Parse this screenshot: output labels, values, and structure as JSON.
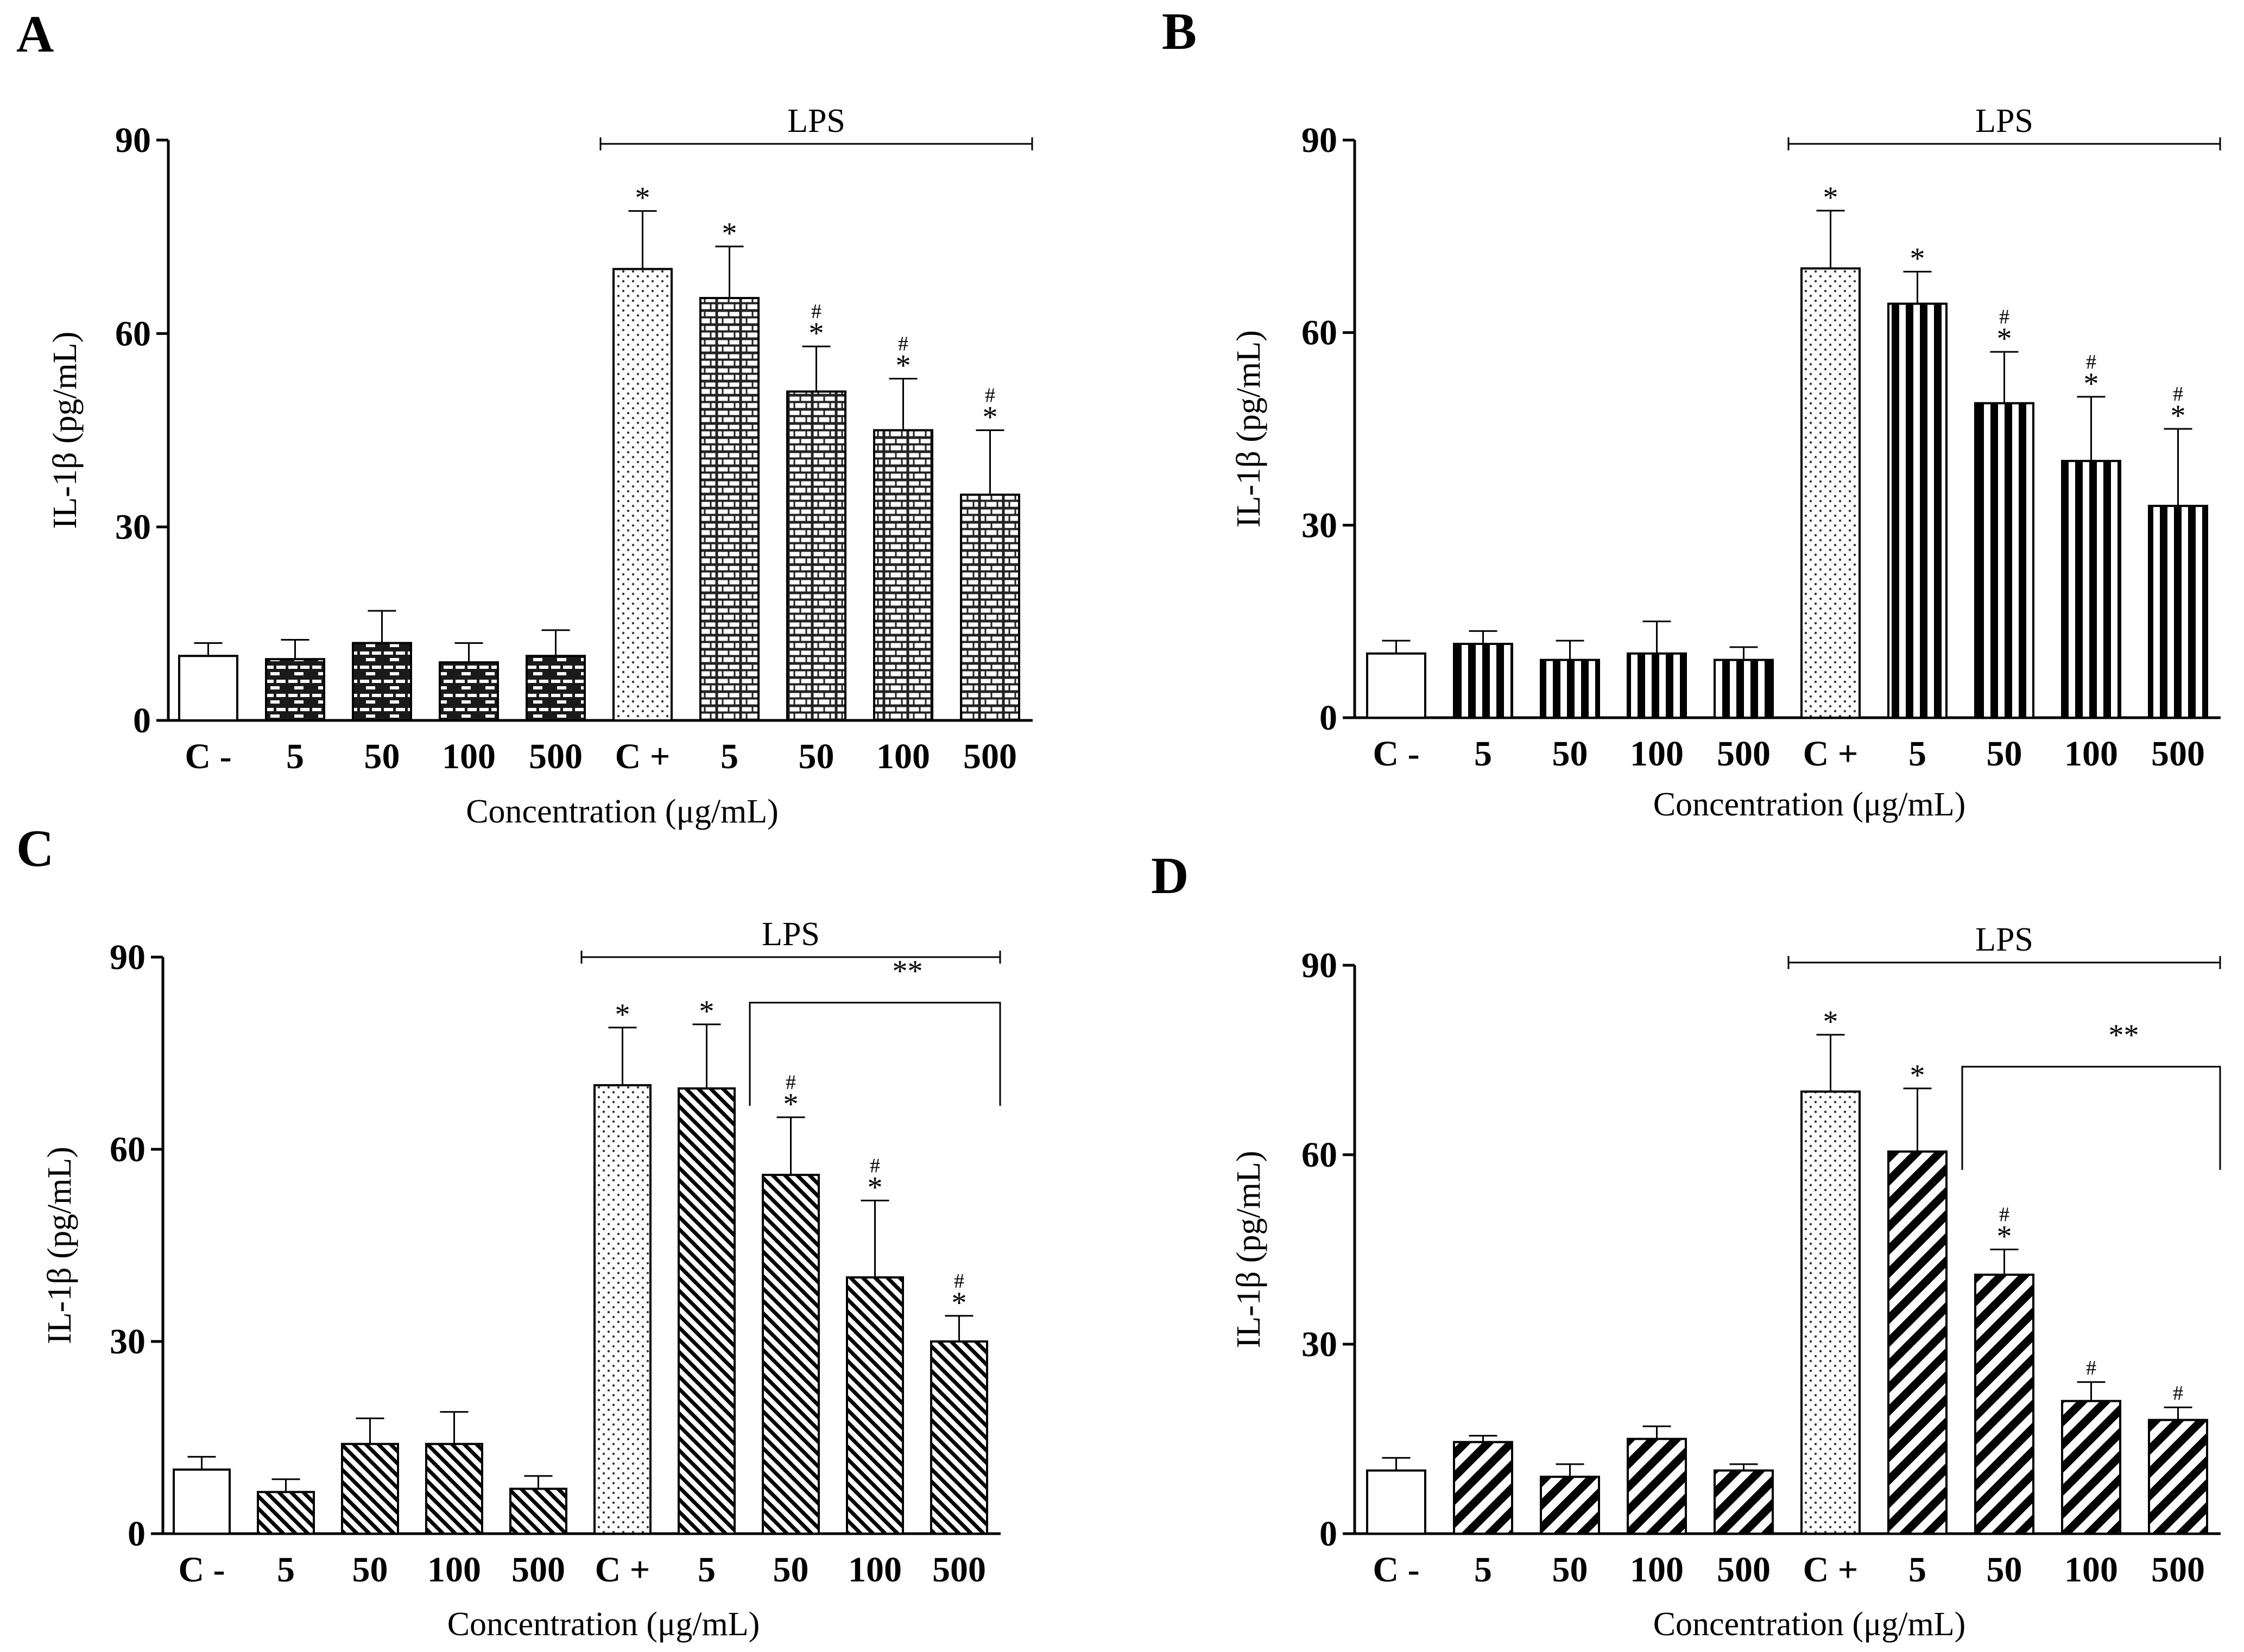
{
  "figure": {
    "x_label": "Concentration (μg/mL)",
    "y_label": "IL-1β (pg/mL)",
    "categories": [
      "C -",
      "5",
      "50",
      "100",
      "500",
      "C +",
      "5",
      "50",
      "100",
      "500"
    ],
    "bracket_label": "LPS",
    "double_star_label": "**"
  },
  "chart_data": [
    {
      "panel": "A",
      "type": "bar",
      "title": "",
      "xlabel": "Concentration (μg/mL)",
      "ylabel": "IL-1β (pg/mL)",
      "ylim": [
        0,
        90
      ],
      "yticks": [
        0,
        30,
        60,
        90
      ],
      "categories": [
        "C -",
        "5",
        "50",
        "100",
        "500",
        "C +",
        "5",
        "50",
        "100",
        "500"
      ],
      "values": [
        10,
        9.5,
        12,
        9,
        10,
        70,
        65.5,
        51,
        45,
        35
      ],
      "errors": [
        2,
        3,
        5,
        3,
        4,
        9,
        8,
        7,
        8,
        10
      ],
      "fills": [
        "empty",
        "brick-dark",
        "brick-dark",
        "brick-dark",
        "brick-dark",
        "dots",
        "brick-light",
        "brick-light",
        "brick-light",
        "brick-light"
      ],
      "significance": [
        "",
        "",
        "",
        "",
        "",
        "*",
        "*",
        "*",
        "*",
        "*"
      ],
      "hash": [
        "",
        "",
        "",
        "",
        "",
        "",
        "",
        "#",
        "#",
        "#"
      ],
      "group_bracket": {
        "label": "LPS",
        "from": 5,
        "to": 9
      },
      "double_star_bracket": null
    },
    {
      "panel": "B",
      "type": "bar",
      "title": "",
      "xlabel": "Concentration (μg/mL)",
      "ylabel": "IL-1β (pg/mL)",
      "ylim": [
        0,
        90
      ],
      "yticks": [
        0,
        30,
        60,
        90
      ],
      "categories": [
        "C -",
        "5",
        "50",
        "100",
        "500",
        "C +",
        "5",
        "50",
        "100",
        "500"
      ],
      "values": [
        10,
        11.5,
        9,
        10,
        9,
        70,
        64.5,
        49,
        40,
        33
      ],
      "errors": [
        2,
        2,
        3,
        5,
        2,
        9,
        5,
        8,
        10,
        12
      ],
      "fills": [
        "empty",
        "vstripes",
        "vstripes",
        "vstripes",
        "vstripes",
        "dots",
        "vstripes",
        "vstripes",
        "vstripes",
        "vstripes"
      ],
      "significance": [
        "",
        "",
        "",
        "",
        "",
        "*",
        "*",
        "*",
        "*",
        "*"
      ],
      "hash": [
        "",
        "",
        "",
        "",
        "",
        "",
        "",
        "#",
        "#",
        "#"
      ],
      "group_bracket": {
        "label": "LPS",
        "from": 5,
        "to": 9
      },
      "double_star_bracket": null
    },
    {
      "panel": "C",
      "type": "bar",
      "title": "",
      "xlabel": "Concentration (μg/mL)",
      "ylabel": "IL-1β (pg/mL)",
      "ylim": [
        0,
        90
      ],
      "yticks": [
        0,
        30,
        60,
        90
      ],
      "categories": [
        "C -",
        "5",
        "50",
        "100",
        "500",
        "C +",
        "5",
        "50",
        "100",
        "500"
      ],
      "values": [
        10,
        6.5,
        14,
        14,
        7,
        70,
        69.5,
        56,
        40,
        30
      ],
      "errors": [
        2,
        2,
        4,
        5,
        2,
        9,
        10,
        9,
        12,
        4
      ],
      "fills": [
        "empty",
        "diag-fine",
        "diag-fine",
        "diag-fine",
        "diag-fine",
        "dots",
        "diag-fine",
        "diag-fine",
        "diag-fine",
        "diag-fine"
      ],
      "significance": [
        "",
        "",
        "",
        "",
        "",
        "*",
        "*",
        "*",
        "*",
        "*"
      ],
      "hash": [
        "",
        "",
        "",
        "",
        "",
        "",
        "",
        "#",
        "#",
        "#"
      ],
      "group_bracket": {
        "label": "LPS",
        "from": 5,
        "to": 9
      },
      "double_star_bracket": {
        "label": "**",
        "from": 7,
        "to": 9
      }
    },
    {
      "panel": "D",
      "type": "bar",
      "title": "",
      "xlabel": "Concentration (μg/mL)",
      "ylabel": "IL-1β (pg/mL)",
      "ylim": [
        0,
        90
      ],
      "yticks": [
        0,
        30,
        60,
        90
      ],
      "categories": [
        "C -",
        "5",
        "50",
        "100",
        "500",
        "C +",
        "5",
        "50",
        "100",
        "500"
      ],
      "values": [
        10,
        14.5,
        9,
        15,
        10,
        70,
        60.5,
        41,
        21,
        18
      ],
      "errors": [
        2,
        1,
        2,
        2,
        1,
        9,
        10,
        4,
        3,
        2
      ],
      "fills": [
        "empty",
        "diag-bold",
        "diag-bold",
        "diag-bold",
        "diag-bold",
        "dots",
        "diag-bold",
        "diag-bold",
        "diag-bold",
        "diag-bold"
      ],
      "significance": [
        "",
        "",
        "",
        "",
        "",
        "*",
        "*",
        "*",
        "",
        ""
      ],
      "hash": [
        "",
        "",
        "",
        "",
        "",
        "",
        "",
        "#",
        "#",
        "#"
      ],
      "group_bracket": {
        "label": "LPS",
        "from": 5,
        "to": 9
      },
      "double_star_bracket": {
        "label": "**",
        "from": 7,
        "to": 9
      }
    }
  ]
}
